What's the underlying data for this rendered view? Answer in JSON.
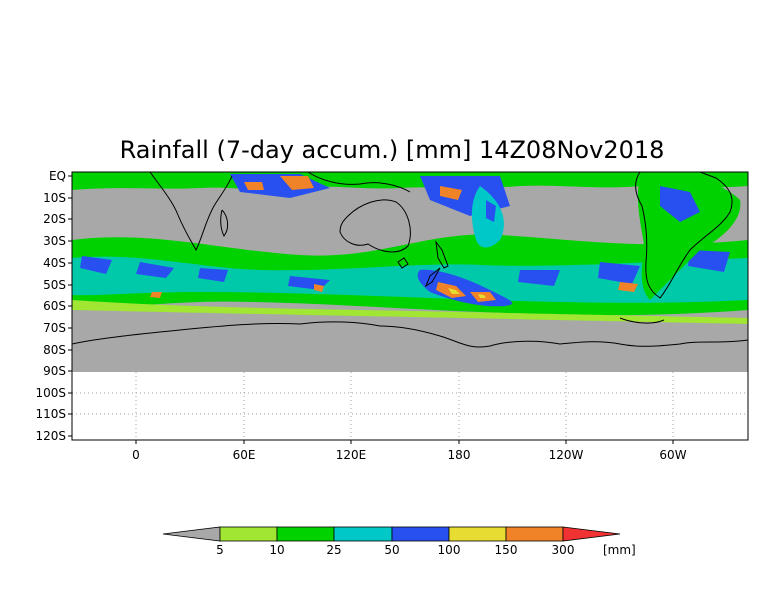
{
  "title": "Rainfall (7-day accum.) [mm] 14Z08Nov2018",
  "y_axis_labels": [
    "EQ",
    "10S",
    "20S",
    "30S",
    "40S",
    "50S",
    "60S",
    "70S",
    "80S",
    "90S",
    "100S",
    "110S",
    "120S"
  ],
  "x_axis_labels": [
    "0",
    "60E",
    "120E",
    "180",
    "120W",
    "60W"
  ],
  "colorbar": {
    "unit": "[mm]",
    "thresholds": [
      "5",
      "10",
      "25",
      "50",
      "100",
      "150",
      "300"
    ],
    "colors": [
      "#a8a8a8",
      "#a0e632",
      "#00d200",
      "#00c8c8",
      "#2850f0",
      "#e6dc32",
      "#f08228",
      "#f03232"
    ]
  },
  "colors": {
    "no_rain": "#a8a8a8",
    "coastline": "#000000",
    "grid": "#a0a0a0"
  }
}
